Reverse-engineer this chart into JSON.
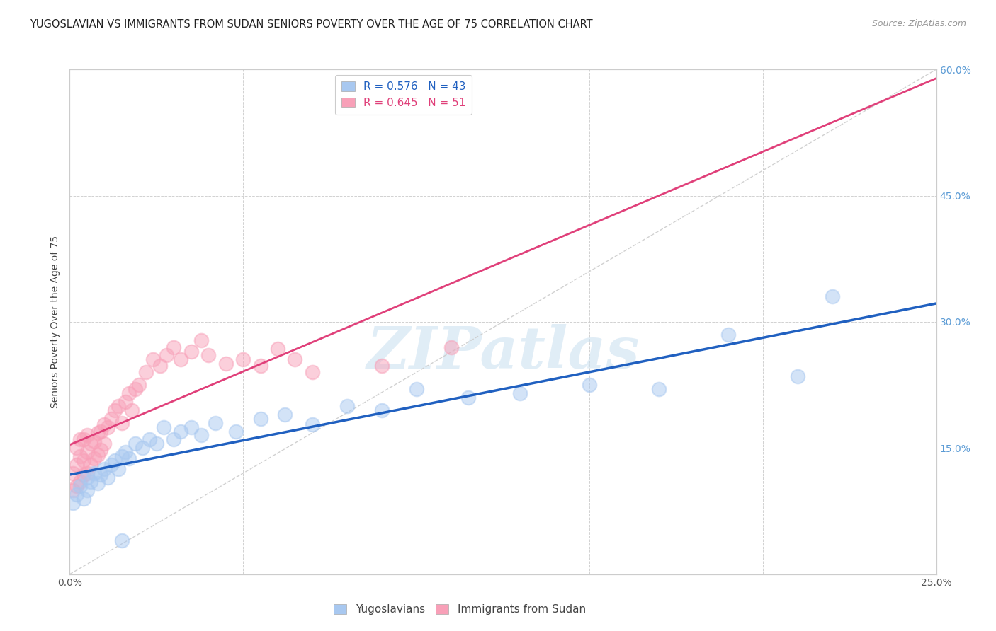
{
  "title": "YUGOSLAVIAN VS IMMIGRANTS FROM SUDAN SENIORS POVERTY OVER THE AGE OF 75 CORRELATION CHART",
  "source": "Source: ZipAtlas.com",
  "ylabel": "Seniors Poverty Over the Age of 75",
  "xlim": [
    0.0,
    0.25
  ],
  "ylim": [
    0.0,
    0.6
  ],
  "xticks": [
    0.0,
    0.05,
    0.1,
    0.15,
    0.2,
    0.25
  ],
  "yticks": [
    0.0,
    0.15,
    0.3,
    0.45,
    0.6
  ],
  "xticklabels": [
    "0.0%",
    "",
    "",
    "",
    "",
    "25.0%"
  ],
  "yticklabels_right": [
    "",
    "15.0%",
    "30.0%",
    "45.0%",
    "60.0%"
  ],
  "yugo_color": "#a8c8f0",
  "yugo_line_color": "#2060c0",
  "sudan_color": "#f8a0b8",
  "sudan_line_color": "#e0407a",
  "yugo_label": "R = 0.576   N = 43",
  "sudan_label": "R = 0.645   N = 51",
  "diagonal_color": "#cccccc",
  "background_color": "#ffffff",
  "grid_color": "#cccccc",
  "watermark": "ZIPatlas",
  "title_fontsize": 10.5,
  "source_fontsize": 9,
  "ylabel_fontsize": 10,
  "tick_fontsize": 10,
  "legend_fontsize": 11,
  "yugo_x": [
    0.001,
    0.002,
    0.003,
    0.004,
    0.005,
    0.005,
    0.006,
    0.007,
    0.008,
    0.009,
    0.01,
    0.011,
    0.012,
    0.013,
    0.014,
    0.015,
    0.016,
    0.017,
    0.019,
    0.021,
    0.023,
    0.025,
    0.027,
    0.03,
    0.032,
    0.035,
    0.038,
    0.042,
    0.048,
    0.055,
    0.062,
    0.07,
    0.08,
    0.09,
    0.1,
    0.115,
    0.13,
    0.15,
    0.17,
    0.19,
    0.21,
    0.22,
    0.015
  ],
  "yugo_y": [
    0.085,
    0.095,
    0.105,
    0.09,
    0.1,
    0.115,
    0.11,
    0.12,
    0.108,
    0.118,
    0.125,
    0.115,
    0.13,
    0.135,
    0.125,
    0.14,
    0.145,
    0.138,
    0.155,
    0.15,
    0.16,
    0.155,
    0.175,
    0.16,
    0.17,
    0.175,
    0.165,
    0.18,
    0.17,
    0.185,
    0.19,
    0.178,
    0.2,
    0.195,
    0.22,
    0.21,
    0.215,
    0.225,
    0.22,
    0.285,
    0.235,
    0.33,
    0.04
  ],
  "sudan_x": [
    0.001,
    0.001,
    0.002,
    0.002,
    0.002,
    0.003,
    0.003,
    0.003,
    0.004,
    0.004,
    0.004,
    0.005,
    0.005,
    0.005,
    0.006,
    0.006,
    0.007,
    0.007,
    0.008,
    0.008,
    0.009,
    0.009,
    0.01,
    0.01,
    0.011,
    0.012,
    0.013,
    0.014,
    0.015,
    0.016,
    0.017,
    0.018,
    0.019,
    0.02,
    0.022,
    0.024,
    0.026,
    0.028,
    0.03,
    0.032,
    0.035,
    0.038,
    0.04,
    0.045,
    0.05,
    0.055,
    0.06,
    0.065,
    0.07,
    0.09,
    0.11
  ],
  "sudan_y": [
    0.1,
    0.12,
    0.105,
    0.13,
    0.15,
    0.11,
    0.14,
    0.16,
    0.118,
    0.135,
    0.16,
    0.12,
    0.145,
    0.165,
    0.13,
    0.155,
    0.138,
    0.158,
    0.142,
    0.168,
    0.148,
    0.17,
    0.155,
    0.178,
    0.175,
    0.185,
    0.195,
    0.2,
    0.18,
    0.205,
    0.215,
    0.195,
    0.22,
    0.225,
    0.24,
    0.255,
    0.248,
    0.26,
    0.27,
    0.255,
    0.265,
    0.278,
    0.26,
    0.25,
    0.255,
    0.248,
    0.268,
    0.255,
    0.24,
    0.248,
    0.27
  ]
}
